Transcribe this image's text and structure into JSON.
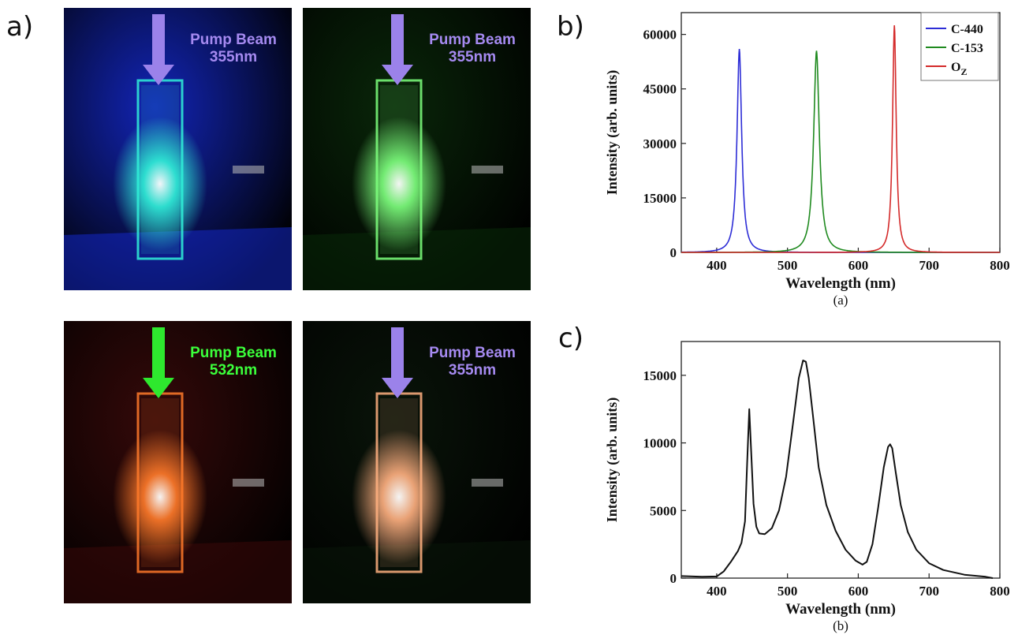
{
  "labels": {
    "a": "a)",
    "b": "b)",
    "c": "c)"
  },
  "photos": [
    {
      "pump_title": "Pump Beam",
      "wavelength": "355nm",
      "label_color": "#a58af0",
      "arrow_color": "#9b82ea",
      "glow_color": "#30f0d8",
      "ambient_color": "#1428c8"
    },
    {
      "pump_title": "Pump Beam",
      "wavelength": "355nm",
      "label_color": "#a58af0",
      "arrow_color": "#9b82ea",
      "glow_color": "#7dff7d",
      "ambient_color": "#0a2a0a"
    },
    {
      "pump_title": "Pump Beam",
      "wavelength": "532nm",
      "label_color": "#3bff3b",
      "arrow_color": "#2ee82e",
      "glow_color": "#ff7a2a",
      "ambient_color": "#3a0a0a"
    },
    {
      "pump_title": "Pump Beam",
      "wavelength": "355nm",
      "label_color": "#a58af0",
      "arrow_color": "#9b82ea",
      "glow_color": "#ffb080",
      "ambient_color": "#0a160a"
    }
  ],
  "chart_data": [
    {
      "type": "line",
      "xlabel": "Wavelength (nm)",
      "ylabel": "Intensity (arb. units)",
      "caption": "(a)",
      "xlim": [
        350,
        800
      ],
      "ylim": [
        0,
        66000
      ],
      "xticks": [
        400,
        500,
        600,
        700,
        800
      ],
      "yticks": [
        0,
        15000,
        30000,
        45000,
        60000
      ],
      "legend_position": "top-right",
      "series": [
        {
          "name": "C-440",
          "color": "#2d2dd6",
          "peak_x": 432,
          "peak_y": 56000,
          "width": 4.5
        },
        {
          "name": "C-153",
          "color": "#1f8a1f",
          "peak_x": 541,
          "peak_y": 55500,
          "width": 5.5
        },
        {
          "name": "O",
          "name_sub": "Z",
          "color": "#d42a2a",
          "peak_x": 651,
          "peak_y": 62500,
          "width": 3.5
        }
      ]
    },
    {
      "type": "line",
      "xlabel": "Wavelength (nm)",
      "ylabel": "Intensity (arb. units)",
      "caption": "(b)",
      "xlim": [
        350,
        800
      ],
      "ylim": [
        0,
        17500
      ],
      "xticks": [
        400,
        500,
        600,
        700,
        800
      ],
      "yticks": [
        0,
        5000,
        10000,
        15000
      ],
      "series": [
        {
          "color": "#111111",
          "x": [
            350,
            380,
            400,
            410,
            420,
            430,
            435,
            440,
            443,
            446,
            449,
            452,
            456,
            460,
            468,
            478,
            488,
            498,
            508,
            516,
            522,
            526,
            530,
            536,
            544,
            555,
            568,
            582,
            596,
            606,
            612,
            620,
            628,
            636,
            642,
            645,
            648,
            653,
            660,
            670,
            682,
            700,
            720,
            750,
            780,
            790
          ],
          "y": [
            150,
            100,
            120,
            500,
            1200,
            2000,
            2600,
            4200,
            8500,
            12500,
            9000,
            5500,
            3800,
            3300,
            3250,
            3700,
            5000,
            7500,
            11500,
            14800,
            16100,
            16000,
            14800,
            12000,
            8200,
            5400,
            3500,
            2100,
            1300,
            1000,
            1200,
            2500,
            5200,
            8200,
            9700,
            9900,
            9600,
            7800,
            5400,
            3400,
            2100,
            1100,
            600,
            250,
            100,
            0
          ]
        }
      ]
    }
  ]
}
